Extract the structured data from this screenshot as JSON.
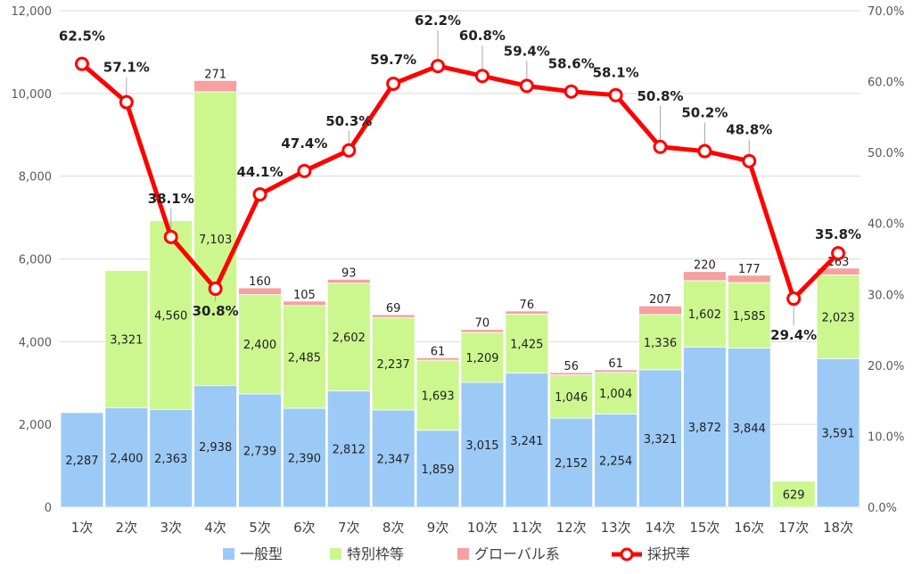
{
  "chart_data": {
    "type": "bar",
    "stacked": true,
    "categories": [
      "1次",
      "2次",
      "3次",
      "4次",
      "5次",
      "6次",
      "7次",
      "8次",
      "9次",
      "10次",
      "11次",
      "12次",
      "13次",
      "14次",
      "15次",
      "16次",
      "17次",
      "18次"
    ],
    "series": [
      {
        "name": "一般型",
        "color": "#9ccaf7",
        "values": [
          2287,
          2400,
          2363,
          2938,
          2739,
          2390,
          2812,
          2347,
          1859,
          3015,
          3241,
          2152,
          2254,
          3321,
          3872,
          3844,
          0,
          3591
        ],
        "labels": [
          "2,287",
          "2,400",
          "2,363",
          "2,938",
          "2,739",
          "2,390",
          "2,812",
          "2,347",
          "1,859",
          "3,015",
          "3,241",
          "2,152",
          "2,254",
          "3,321",
          "3,872",
          "3,844",
          "",
          "3,591"
        ]
      },
      {
        "name": "特別枠等",
        "color": "#ccf78f",
        "values": [
          0,
          3321,
          4560,
          7103,
          2400,
          2485,
          2602,
          2237,
          1693,
          1209,
          1425,
          1046,
          1004,
          1336,
          1602,
          1585,
          629,
          2023
        ],
        "labels": [
          "",
          "3,321",
          "4,560",
          "7,103",
          "2,400",
          "2,485",
          "2,602",
          "2,237",
          "1,693",
          "1,209",
          "1,425",
          "1,046",
          "1,004",
          "1,336",
          "1,602",
          "1,585",
          "629",
          "2,023"
        ]
      },
      {
        "name": "グローバル系",
        "color": "#f6a0a0",
        "values": [
          0,
          0,
          0,
          271,
          160,
          105,
          93,
          69,
          61,
          70,
          76,
          56,
          61,
          207,
          220,
          177,
          0,
          163
        ],
        "labels": [
          "",
          "",
          "",
          "271",
          "160",
          "105",
          "93",
          "69",
          "61",
          "70",
          "76",
          "56",
          "61",
          "207",
          "220",
          "177",
          "",
          "163"
        ]
      }
    ],
    "line": {
      "name": "採択率",
      "color": "#ff0000",
      "values": [
        62.5,
        57.1,
        38.1,
        30.8,
        44.1,
        47.4,
        50.3,
        59.7,
        62.2,
        60.8,
        59.4,
        58.6,
        58.1,
        50.8,
        50.2,
        48.8,
        29.4,
        35.8
      ],
      "labels": [
        "62.5%",
        "57.1%",
        "38.1%",
        "30.8%",
        "44.1%",
        "47.4%",
        "50.3%",
        "59.7%",
        "62.2%",
        "60.8%",
        "59.4%",
        "58.6%",
        "58.1%",
        "50.8%",
        "50.2%",
        "48.8%",
        "29.4%",
        "35.8%"
      ]
    },
    "y_left": {
      "min": 0,
      "max": 12000,
      "ticks": [
        "0",
        "2,000",
        "4,000",
        "6,000",
        "8,000",
        "10,000",
        "12,000"
      ]
    },
    "y_right": {
      "min": 0,
      "max": 70,
      "ticks": [
        "0.0%",
        "10.0%",
        "20.0%",
        "30.0%",
        "40.0%",
        "50.0%",
        "60.0%",
        "70.0%"
      ]
    },
    "grid": true,
    "legend": {
      "placement": "bottom",
      "items": [
        "一般型",
        "特別枠等",
        "グローバル系",
        "採択率"
      ]
    }
  }
}
